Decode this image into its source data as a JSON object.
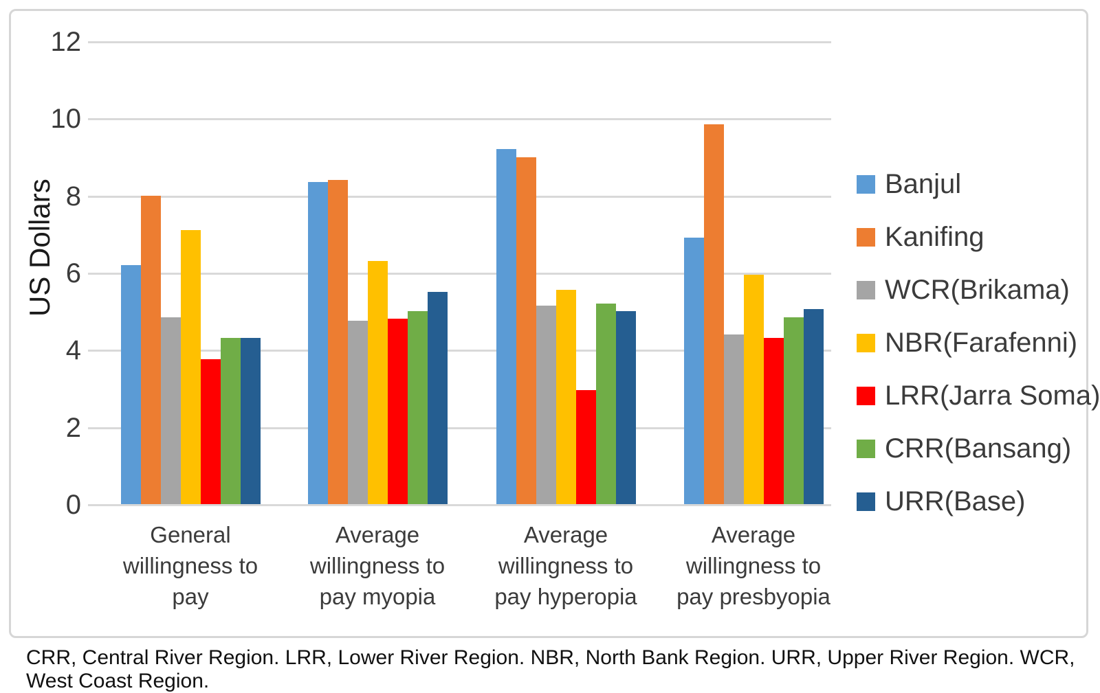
{
  "chart_data": {
    "type": "bar",
    "title": "",
    "xlabel": "",
    "ylabel": "US Dollars",
    "ylim": [
      0,
      12
    ],
    "yticks": [
      0,
      2,
      4,
      6,
      8,
      10,
      12
    ],
    "grid": true,
    "legend_position": "right",
    "categories": [
      "General willingness to pay",
      "Average willingness to pay myopia",
      "Average willingness to pay hyperopia",
      "Average willingness to pay presbyopia"
    ],
    "category_lines": [
      [
        "General",
        "willingness to",
        "pay"
      ],
      [
        "Average",
        "willingness to",
        "pay myopia"
      ],
      [
        "Average",
        "willingness to",
        "pay hyperopia"
      ],
      [
        "Average",
        "willingness to",
        "pay presbyopia"
      ]
    ],
    "series": [
      {
        "name": "Banjul",
        "color": "#5B9BD5",
        "values": [
          6.2,
          8.35,
          9.2,
          6.9
        ]
      },
      {
        "name": "Kanifing",
        "color": "#ED7D31",
        "values": [
          8.0,
          8.4,
          9.0,
          9.85
        ]
      },
      {
        "name": "WCR(Brikama)",
        "color": "#A5A5A5",
        "values": [
          4.85,
          4.75,
          5.15,
          4.4
        ]
      },
      {
        "name": "NBR(Farafenni)",
        "color": "#FFC000",
        "values": [
          7.1,
          6.3,
          5.55,
          5.95
        ]
      },
      {
        "name": "LRR(Jarra Soma)",
        "color": "#FF0000",
        "values": [
          3.75,
          4.8,
          2.95,
          4.3
        ]
      },
      {
        "name": "CRR(Bansang)",
        "color": "#70AD47",
        "values": [
          4.3,
          5.0,
          5.2,
          4.85
        ]
      },
      {
        "name": "URR(Base)",
        "color": "#255E91",
        "values": [
          4.3,
          5.5,
          5.0,
          5.05
        ]
      }
    ]
  },
  "footnote": "CRR, Central River Region. LRR, Lower River Region. NBR, North Bank Region. URR, Upper River Region. WCR, West Coast Region."
}
